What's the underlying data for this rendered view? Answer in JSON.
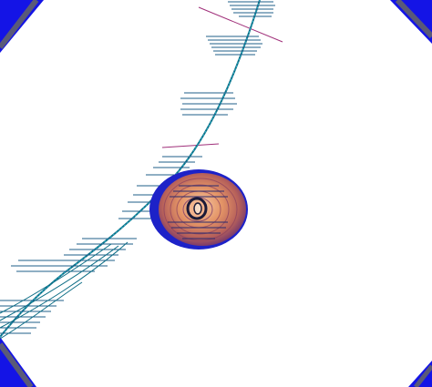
{
  "scene": {
    "description_visible_text": "",
    "colors": {
      "background": "#ffffff",
      "frame_blue": "#1414e6",
      "frame_dark": "#0a0a8c",
      "frame_edge": "#5a5a78",
      "track": "#0e6e86",
      "track_light": "#2bb3c9",
      "hit_marks": "#1f5f8a",
      "magenta_marker": "#a0307a",
      "detector_outer": "#1d22c8",
      "detector_inner_warm": "#e59a6a",
      "detector_core": "#f2b48c",
      "detector_ring": "#1b1b38"
    },
    "icons": {
      "frame": "octagonal-detector-frame",
      "track": "particle-track",
      "detector": "barrel-detector"
    }
  }
}
